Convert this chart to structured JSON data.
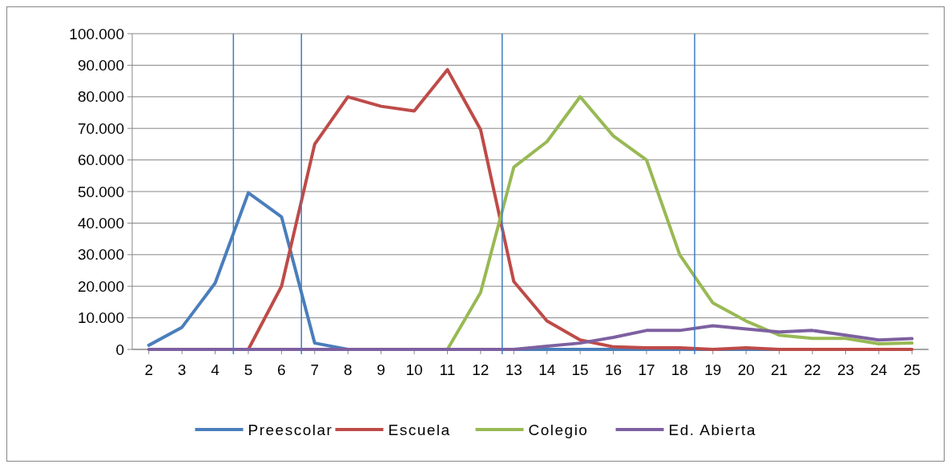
{
  "chart_data": {
    "type": "line",
    "x": [
      2,
      3,
      4,
      5,
      6,
      7,
      8,
      9,
      10,
      11,
      12,
      13,
      14,
      15,
      16,
      17,
      18,
      19,
      20,
      21,
      22,
      23,
      24,
      25
    ],
    "xlim": [
      1.5,
      25.5
    ],
    "xticks": [
      2,
      3,
      4,
      5,
      6,
      7,
      8,
      9,
      10,
      11,
      12,
      13,
      14,
      15,
      16,
      17,
      18,
      19,
      20,
      21,
      22,
      23,
      24,
      25
    ],
    "ylim": [
      0,
      100000
    ],
    "yticks": [
      {
        "value": 0,
        "label": "0"
      },
      {
        "value": 10000,
        "label": "10.000"
      },
      {
        "value": 20000,
        "label": "20.000"
      },
      {
        "value": 30000,
        "label": "30.000"
      },
      {
        "value": 40000,
        "label": "40.000"
      },
      {
        "value": 50000,
        "label": "50.000"
      },
      {
        "value": 60000,
        "label": "60.000"
      },
      {
        "value": 70000,
        "label": "70.000"
      },
      {
        "value": 80000,
        "label": "80.000"
      },
      {
        "value": 90000,
        "label": "90.000"
      },
      {
        "value": 100000,
        "label": "100.000"
      }
    ],
    "grid": "y",
    "legend": "bottom",
    "marker": "none",
    "line_style": "solid",
    "series": [
      {
        "name": "Preescolar",
        "color": "#4a7ebb",
        "values": [
          1300,
          7000,
          21000,
          49600,
          42000,
          2000,
          0,
          0,
          0,
          0,
          0,
          0,
          0,
          0,
          0,
          0,
          0,
          0,
          0,
          0,
          0,
          null,
          null,
          null
        ]
      },
      {
        "name": "Escuela",
        "color": "#be4b48",
        "values": [
          null,
          null,
          0,
          0,
          20000,
          65000,
          80000,
          77000,
          75500,
          88600,
          69600,
          21500,
          9000,
          3000,
          800,
          500,
          500,
          0,
          500,
          0,
          0,
          0,
          0,
          0
        ]
      },
      {
        "name": "Colegio",
        "color": "#98b954",
        "values": [
          null,
          null,
          null,
          null,
          null,
          null,
          null,
          null,
          0,
          0,
          18000,
          57700,
          65800,
          80000,
          67600,
          60000,
          30000,
          14700,
          9000,
          4500,
          3500,
          3500,
          1800,
          2000
        ]
      },
      {
        "name": "Ed. Abierta",
        "color": "#7d60a0",
        "values": [
          0,
          0,
          0,
          0,
          0,
          0,
          0,
          0,
          0,
          0,
          0,
          0,
          1000,
          2000,
          3800,
          6000,
          6000,
          7500,
          6500,
          5500,
          6000,
          4500,
          3000,
          3400
        ]
      }
    ],
    "ref_lines": [
      {
        "axis": "x",
        "value": 4.55,
        "color": "#3c7dc4"
      },
      {
        "axis": "x",
        "value": 6.6,
        "color": "#3c7dc4"
      },
      {
        "axis": "x",
        "value": 12.65,
        "color": "#3c7dc4"
      },
      {
        "axis": "x",
        "value": 18.45,
        "color": "#3c7dc4"
      }
    ]
  }
}
